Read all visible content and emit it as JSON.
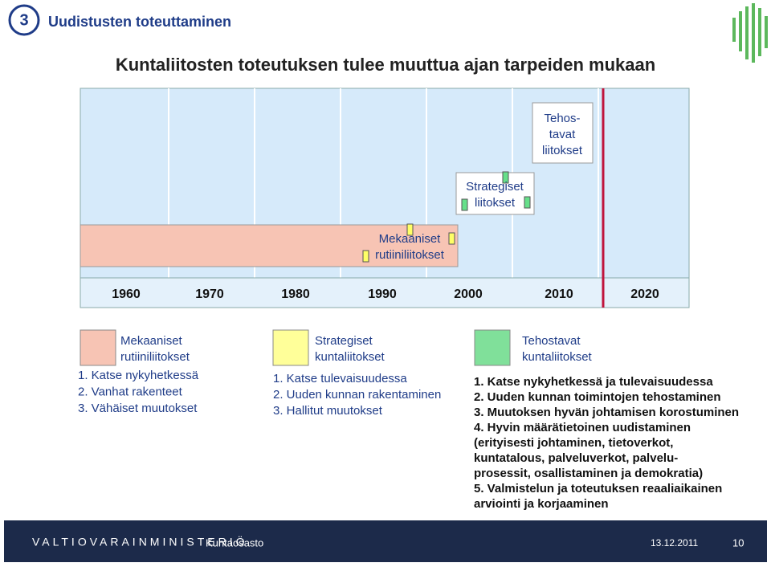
{
  "header": {
    "number": "3",
    "title": "Uudistusten toteuttaminen"
  },
  "slide_title": "Kuntaliitosten toteutuksen tulee muuttua ajan tarpeiden mukaan",
  "timeline": {
    "years": [
      "1960",
      "1970",
      "1980",
      "1990",
      "2000",
      "2010",
      "2020"
    ],
    "boxes": [
      [
        "Mekaaniset",
        "rutiiniliitokset"
      ],
      [
        "Strategiset",
        "liitokset"
      ],
      [
        "Tehos-",
        "tavat",
        "liitokset"
      ]
    ]
  },
  "legend": [
    {
      "title": [
        "Mekaaniset",
        "rutiiniliitokset"
      ],
      "items": [
        "1. Katse nykyhetkessä",
        "2. Vanhat rakenteet",
        "3. Vähäiset muutokset"
      ]
    },
    {
      "title": [
        "Strategiset",
        "kuntaliitokset"
      ],
      "items": [
        "1. Katse tulevaisuudessa",
        "2. Uuden kunnan rakentaminen",
        "3. Hallitut muutokset"
      ]
    },
    {
      "title": [
        "Tehostavat",
        "kuntaliitokset"
      ],
      "items": [
        "1. Katse nykyhetkessä ja tulevaisuudessa",
        "2. Uuden kunnan toimintojen tehostaminen",
        "3. Muutoksen hyvän johtamisen korostuminen",
        "4. Hyvin määrätietoinen uudistaminen",
        "(erityisesti johtaminen, tietoverkot,",
        "kuntatalous, palveluverkot, palvelu-",
        "prosessit, osallistaminen ja demokratia)",
        "5. Valmistelun ja toteutuksen reaaliaikainen",
        "arviointi ja korjaaminen"
      ]
    }
  ],
  "footer": {
    "organization": "VALTIOVARAINMINISTERIÖ",
    "department": "Kuntaosasto",
    "date": "13.12.2011",
    "page": "10"
  }
}
